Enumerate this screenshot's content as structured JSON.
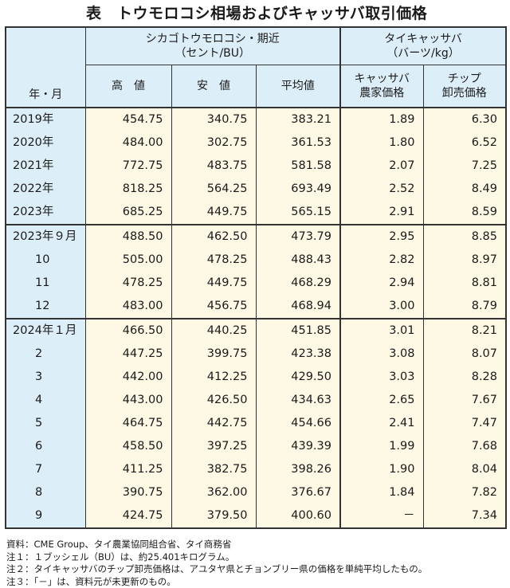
{
  "title": "表　トウモロコシ相場およびキャッサバ取引価格",
  "header": {
    "year_month": "年・月",
    "corn_group": "シカゴトウモロコシ・期近",
    "corn_unit": "（セント/BU）",
    "cassava_group": "タイキャッサバ",
    "cassava_unit": "（バーツ/kg）",
    "high": "高　値",
    "low": "安　値",
    "avg": "平均値",
    "farm_price_1": "キャッサバ",
    "farm_price_2": "農家価格",
    "chip_price_1": "チップ",
    "chip_price_2": "卸売価格"
  },
  "rows": [
    {
      "label": "2019年",
      "high": "454.75",
      "low": "340.75",
      "avg": "383.21",
      "farm": "1.89",
      "chip": "6.30"
    },
    {
      "label": "2020年",
      "high": "484.00",
      "low": "302.75",
      "avg": "361.53",
      "farm": "1.80",
      "chip": "6.52"
    },
    {
      "label": "2021年",
      "high": "772.75",
      "low": "483.75",
      "avg": "581.58",
      "farm": "2.07",
      "chip": "7.25"
    },
    {
      "label": "2022年",
      "high": "818.25",
      "low": "564.25",
      "avg": "693.49",
      "farm": "2.52",
      "chip": "8.49"
    },
    {
      "label": "2023年",
      "high": "685.25",
      "low": "449.75",
      "avg": "565.15",
      "farm": "2.91",
      "chip": "8.59"
    },
    {
      "label": "2023年９月",
      "high": "488.50",
      "low": "462.50",
      "avg": "473.79",
      "farm": "2.95",
      "chip": "8.85"
    },
    {
      "label": "10",
      "high": "505.00",
      "low": "478.25",
      "avg": "488.43",
      "farm": "2.82",
      "chip": "8.97"
    },
    {
      "label": "11",
      "high": "478.25",
      "low": "449.75",
      "avg": "468.29",
      "farm": "2.94",
      "chip": "8.81"
    },
    {
      "label": "12",
      "high": "483.00",
      "low": "456.75",
      "avg": "468.94",
      "farm": "3.00",
      "chip": "8.79"
    },
    {
      "label": "2024年１月",
      "high": "466.50",
      "low": "440.25",
      "avg": "451.85",
      "farm": "3.01",
      "chip": "8.21"
    },
    {
      "label": "2",
      "high": "447.25",
      "low": "399.75",
      "avg": "423.38",
      "farm": "3.08",
      "chip": "8.07"
    },
    {
      "label": "3",
      "high": "442.00",
      "low": "412.25",
      "avg": "429.50",
      "farm": "3.03",
      "chip": "8.28"
    },
    {
      "label": "4",
      "high": "443.00",
      "low": "426.50",
      "avg": "434.63",
      "farm": "2.65",
      "chip": "7.67"
    },
    {
      "label": "5",
      "high": "464.75",
      "low": "442.75",
      "avg": "454.66",
      "farm": "2.41",
      "chip": "7.47"
    },
    {
      "label": "6",
      "high": "458.50",
      "low": "397.25",
      "avg": "439.39",
      "farm": "1.99",
      "chip": "7.68"
    },
    {
      "label": "7",
      "high": "411.25",
      "low": "382.75",
      "avg": "398.26",
      "farm": "1.90",
      "chip": "8.04"
    },
    {
      "label": "8",
      "high": "390.75",
      "low": "362.00",
      "avg": "376.67",
      "farm": "1.84",
      "chip": "7.82"
    },
    {
      "label": "9",
      "high": "424.75",
      "low": "379.50",
      "avg": "400.60",
      "farm": "－",
      "chip": "7.34"
    }
  ],
  "notes": [
    "資料：CME Group、タイ農業協同組合省、タイ商務省",
    "注１：１ブッシェル（BU）は、約25.401キログラム。",
    "注２：タイキャッサバのチップ卸売価格は、アユタヤ県とチョンブリー県の価格を単純平均したもの。",
    "注３：「－」は、資料元が未更新のもの。"
  ]
}
